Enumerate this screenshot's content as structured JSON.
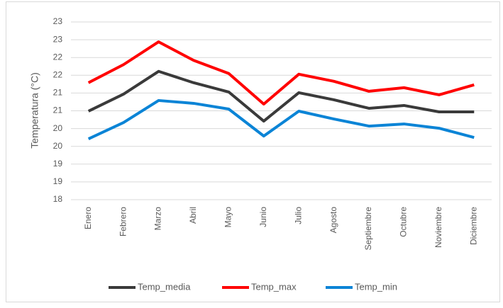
{
  "chart_data": {
    "type": "line",
    "y_label": "Temperatura (°C)",
    "categories": [
      "Enero",
      "Febrero",
      "Marzo",
      "Abril",
      "Mayo",
      "Junio",
      "Julio",
      "Agosto",
      "Septiembre",
      "Octubre",
      "Noviembre",
      "Diciembre"
    ],
    "series": [
      {
        "name": "Temp_media",
        "color": "#3a3a3a",
        "values": [
          20.49,
          20.97,
          21.61,
          21.29,
          21.03,
          20.21,
          21.01,
          20.81,
          20.57,
          20.65,
          20.47,
          20.47
        ]
      },
      {
        "name": "Temp_max",
        "color": "#ff0000",
        "values": [
          21.29,
          21.8,
          22.44,
          21.92,
          21.55,
          20.69,
          21.53,
          21.33,
          21.05,
          21.15,
          20.95,
          21.23
        ]
      },
      {
        "name": "Temp_min",
        "color": "#0b84d6",
        "values": [
          19.71,
          20.17,
          20.79,
          20.71,
          20.55,
          19.79,
          20.49,
          20.27,
          20.07,
          20.13,
          20.01,
          19.75
        ]
      }
    ],
    "ylim": [
      18,
      23
    ],
    "yticks": [
      18,
      {
        "value": 18.5,
        "label": "19"
      },
      19,
      {
        "value": 19.5,
        "label": "20"
      },
      20,
      {
        "value": 20.5,
        "label": "21"
      },
      21,
      {
        "value": 21.5,
        "label": "22"
      },
      22,
      {
        "value": 22.5,
        "label": "23"
      },
      23
    ],
    "grid": true,
    "legend": "bottom"
  }
}
